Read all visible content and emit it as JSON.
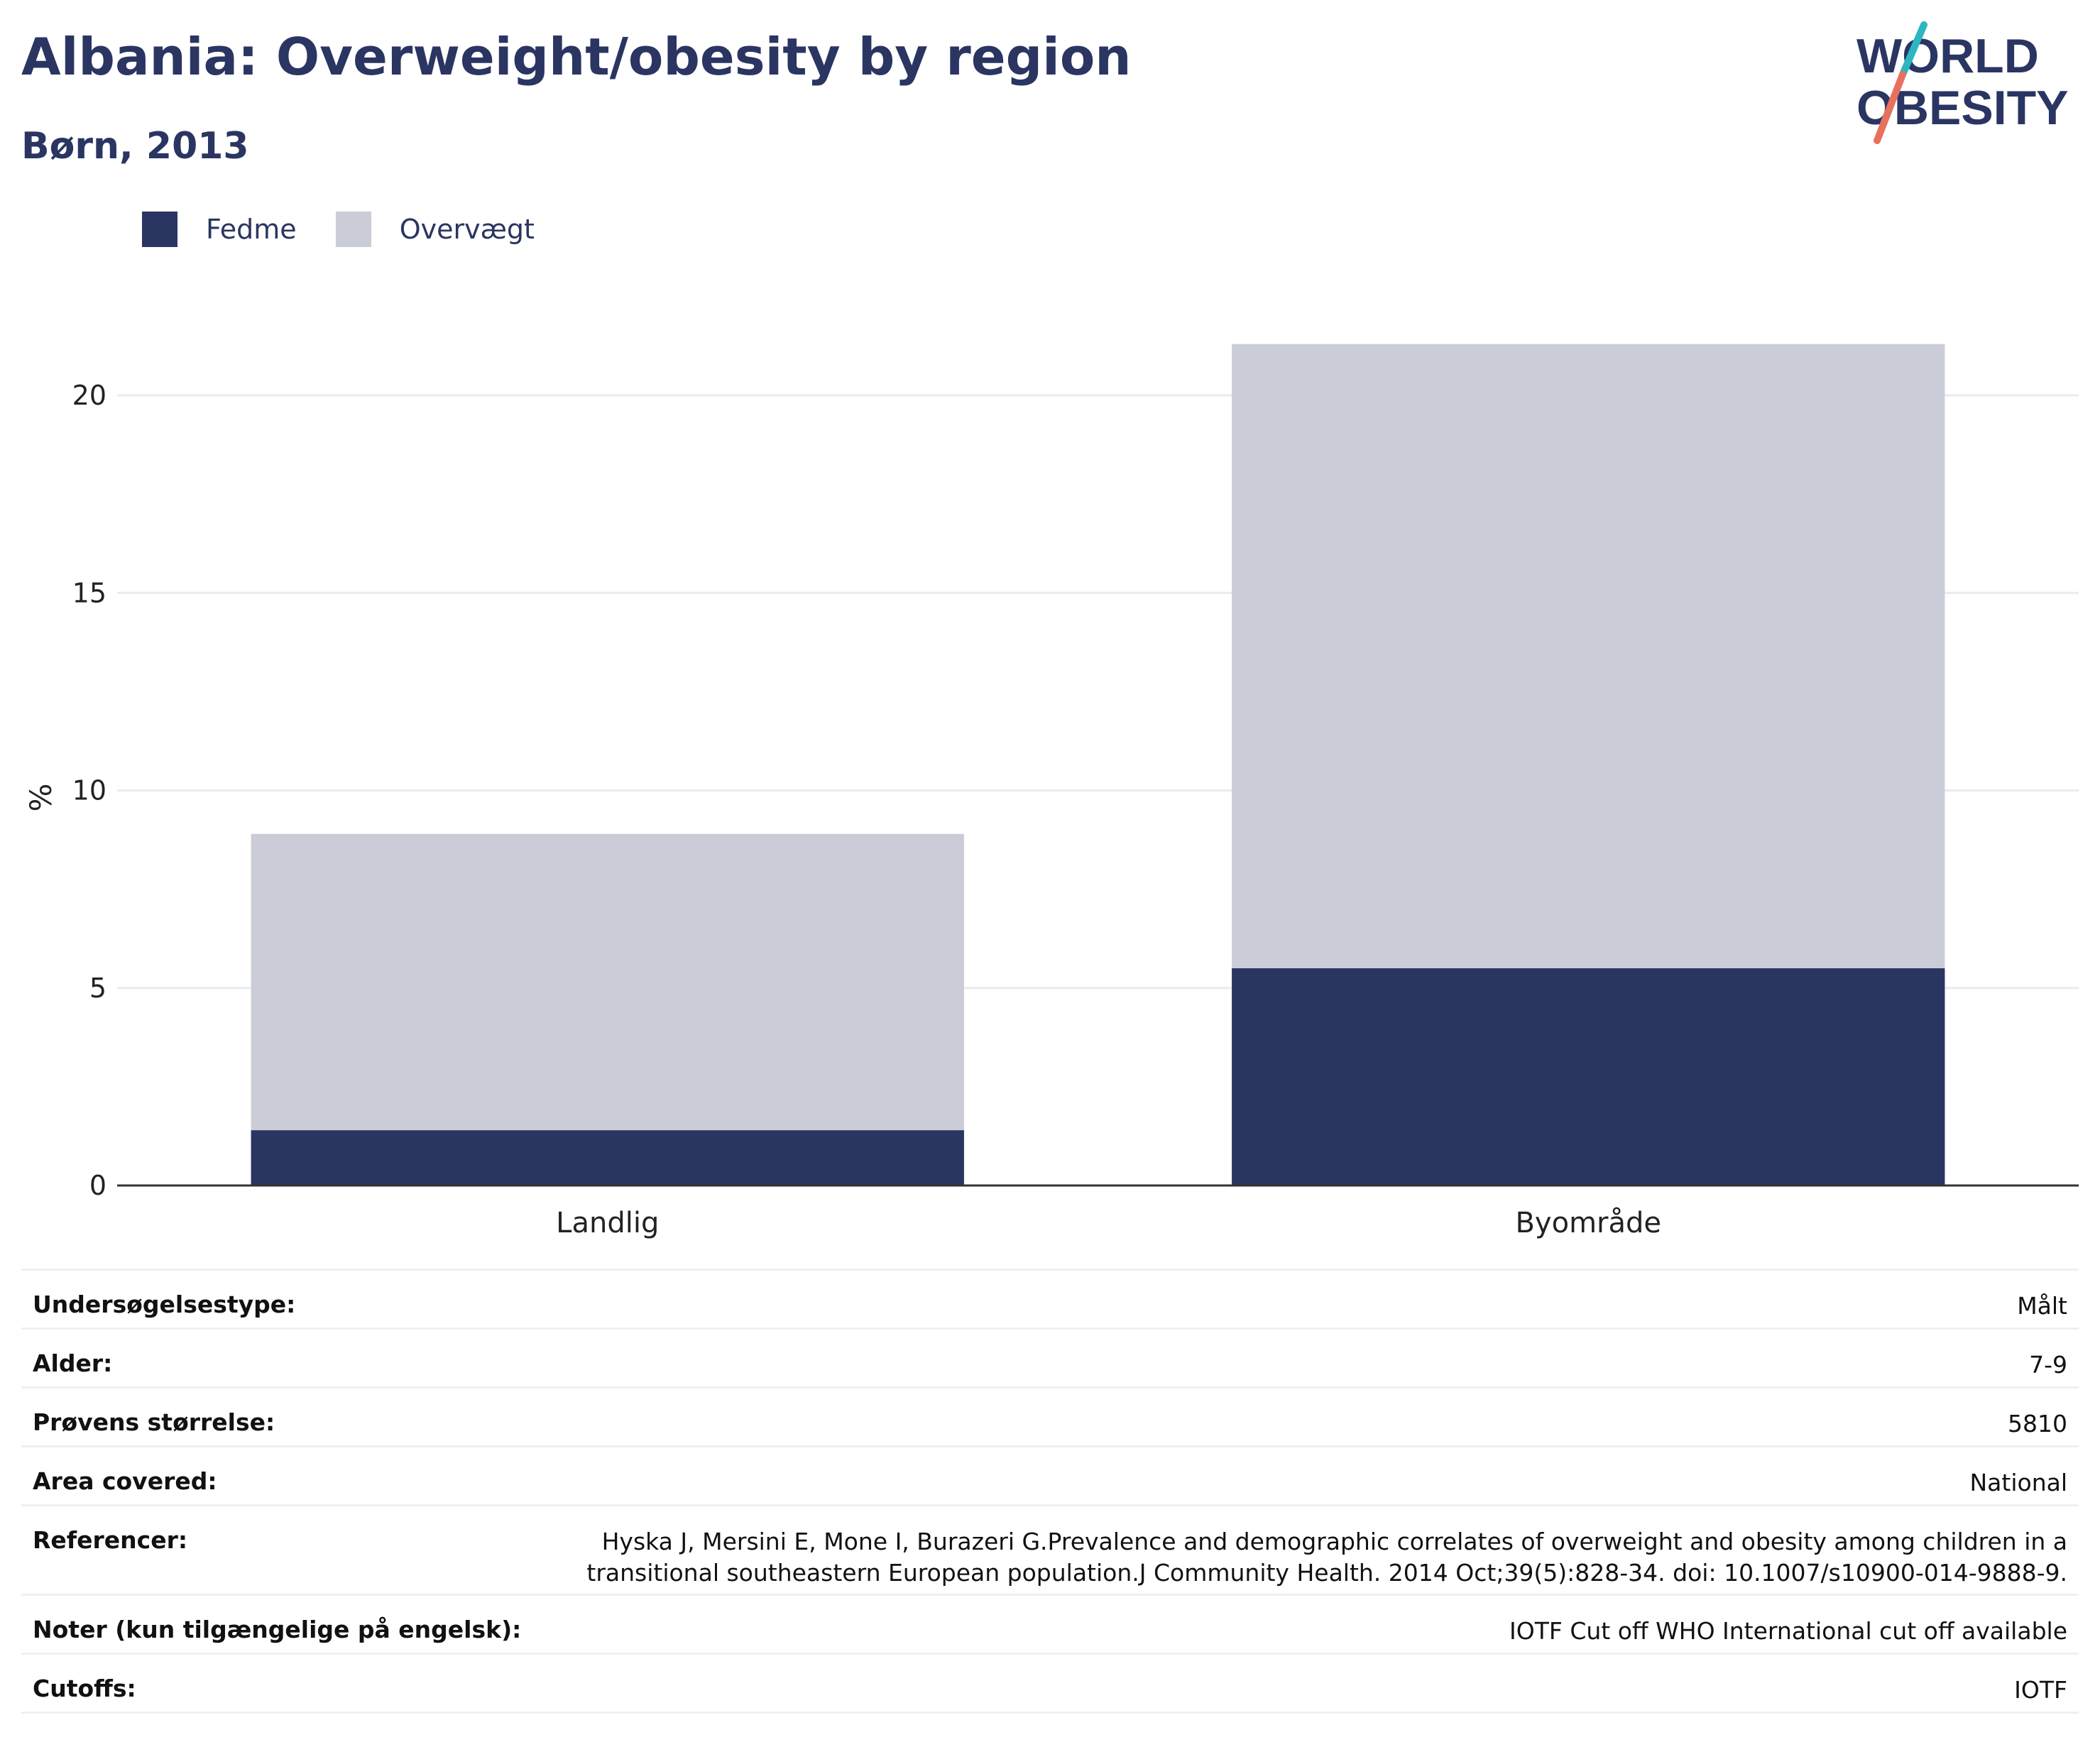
{
  "header": {
    "title": "Albania: Overweight/obesity by region",
    "subtitle": "Børn, 2013"
  },
  "logo": {
    "line1": "WORLD",
    "line2": "OBESITY",
    "colors": {
      "text": "#2a3562",
      "slash_top": "#2bb6c0",
      "slash_bottom": "#e8705e"
    }
  },
  "legend": [
    {
      "label": "Fedme",
      "color": "#2a3562"
    },
    {
      "label": "Overvægt",
      "color": "#cacdd8"
    }
  ],
  "chart_data": {
    "type": "bar",
    "stacked": true,
    "categories": [
      "Landlig",
      "Byområde"
    ],
    "series": [
      {
        "name": "Fedme",
        "color": "#2a3562",
        "values": [
          1.4,
          5.5
        ]
      },
      {
        "name": "Overvægt",
        "color": "#cacdd8",
        "values": [
          7.5,
          15.8
        ]
      }
    ],
    "ylabel": "%",
    "xlabel": "",
    "ylim": [
      0,
      23
    ],
    "yticks": [
      0,
      5,
      10,
      15,
      20
    ],
    "grid": true,
    "legend_position": "top-left"
  },
  "info": [
    {
      "label": "Undersøgelsestype:",
      "value": "Målt"
    },
    {
      "label": "Alder:",
      "value": "7-9"
    },
    {
      "label": "Prøvens størrelse:",
      "value": "5810"
    },
    {
      "label": "Area covered:",
      "value": "National"
    },
    {
      "label": "Referencer:",
      "value": "Hyska J, Mersini E, Mone I, Burazeri G.Prevalence and demographic correlates of overweight and obesity among children in a transitional southeastern European population.J Community Health. 2014 Oct;39(5):828-34. doi: 10.1007/s10900-014-9888-9."
    },
    {
      "label": "Noter (kun tilgængelige på engelsk):",
      "value": "IOTF Cut off WHO International cut off available"
    },
    {
      "label": "Cutoffs:",
      "value": "IOTF"
    }
  ]
}
